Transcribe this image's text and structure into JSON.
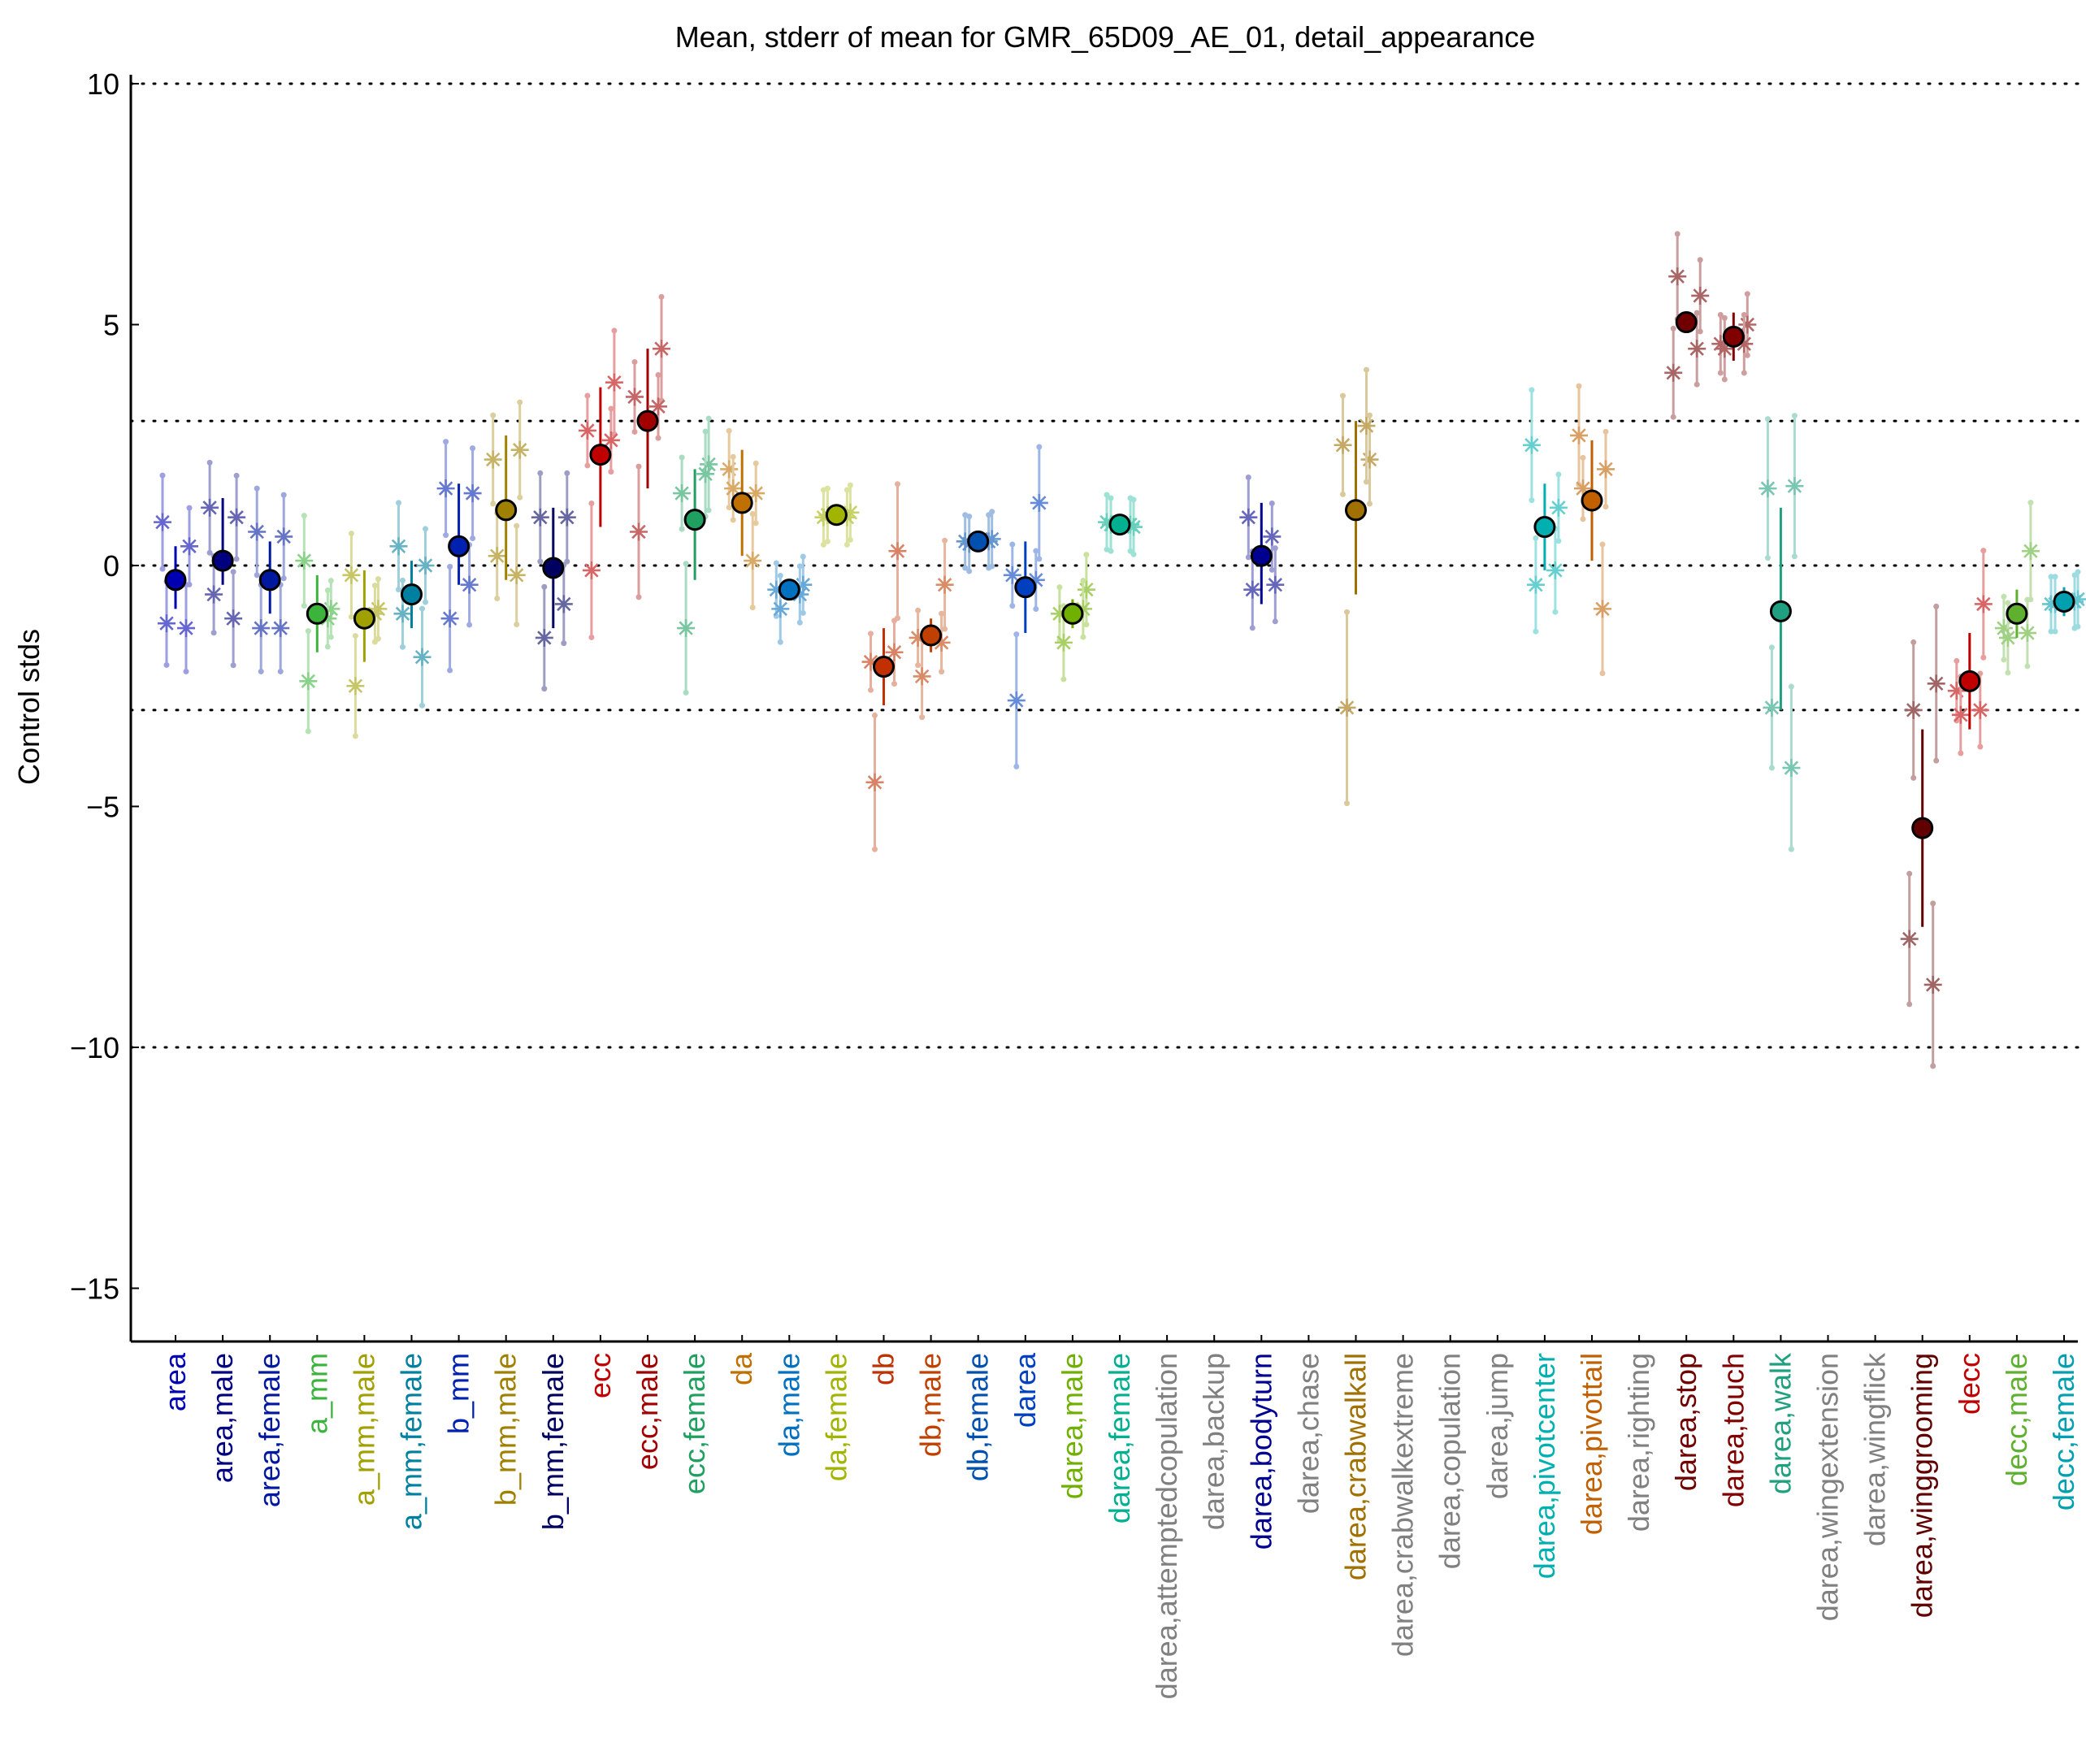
{
  "chart_data": {
    "type": "scatter",
    "title": "Mean, stderr of mean for GMR_65D09_AE_01, detail_appearance",
    "xlabel": "",
    "ylabel": "Control stds",
    "ylim": [
      -16.0,
      10.5
    ],
    "yticks": [
      10,
      5,
      0,
      -5,
      -10,
      -15
    ],
    "yticklabels": [
      "10",
      "5",
      "0",
      "−5",
      "−10",
      "−15"
    ],
    "reference_lines": [
      10,
      3,
      0,
      -3,
      -10
    ],
    "grid": false,
    "categories": [
      {
        "label": "area",
        "color": "#0000b3",
        "mean": -0.3,
        "lo": -0.9,
        "hi": 0.4,
        "stars": [
          0.9,
          0.4,
          -1.2,
          -1.3
        ]
      },
      {
        "label": "area,male",
        "color": "#000080",
        "mean": 0.1,
        "lo": -0.4,
        "hi": 1.4,
        "stars": [
          1.2,
          1.0,
          -0.6,
          -1.1
        ]
      },
      {
        "label": "area,female",
        "color": "#0018a0",
        "mean": -0.3,
        "lo": -1.0,
        "hi": 0.5,
        "stars": [
          0.7,
          0.6,
          -1.3,
          -1.3
        ]
      },
      {
        "label": "a_mm",
        "color": "#3cb43c",
        "mean": -1.0,
        "lo": -1.8,
        "hi": -0.2,
        "stars": [
          0.1,
          -0.9,
          -2.4,
          -1.1
        ]
      },
      {
        "label": "a_mm,male",
        "color": "#a0a000",
        "mean": -1.1,
        "lo": -2.0,
        "hi": -0.1,
        "stars": [
          -0.2,
          -0.9,
          -2.5,
          -1.0
        ]
      },
      {
        "label": "a_mm,female",
        "color": "#0080a0",
        "mean": -0.6,
        "lo": -1.3,
        "hi": 0.1,
        "stars": [
          0.4,
          0.0,
          -1.0,
          -1.9
        ]
      },
      {
        "label": "b_mm",
        "color": "#0020b0",
        "mean": 0.4,
        "lo": -0.4,
        "hi": 1.7,
        "stars": [
          1.6,
          1.5,
          -1.1,
          -0.4
        ]
      },
      {
        "label": "b_mm,male",
        "color": "#a08000",
        "mean": 1.15,
        "lo": -0.3,
        "hi": 2.7,
        "stars": [
          2.2,
          2.4,
          0.2,
          -0.2
        ]
      },
      {
        "label": "b_mm,female",
        "color": "#000060",
        "mean": -0.05,
        "lo": -1.3,
        "hi": 1.2,
        "stars": [
          1.0,
          1.0,
          -1.5,
          -0.8
        ]
      },
      {
        "label": "ecc",
        "color": "#c00000",
        "mean": 2.3,
        "lo": 0.8,
        "hi": 3.7,
        "stars": [
          2.8,
          3.8,
          -0.1,
          2.6
        ]
      },
      {
        "label": "ecc,male",
        "color": "#a00000",
        "mean": 3.0,
        "lo": 1.6,
        "hi": 4.5,
        "stars": [
          3.5,
          4.5,
          0.7,
          3.3
        ]
      },
      {
        "label": "ecc,female",
        "color": "#20a060",
        "mean": 0.95,
        "lo": -0.3,
        "hi": 2.0,
        "stars": [
          1.5,
          2.1,
          -1.3,
          1.9
        ]
      },
      {
        "label": "da",
        "color": "#c07000",
        "mean": 1.3,
        "lo": 0.2,
        "hi": 2.4,
        "stars": [
          2.0,
          1.5,
          1.6,
          0.1
        ]
      },
      {
        "label": "da,male",
        "color": "#0070c0",
        "mean": -0.5,
        "lo": -0.7,
        "hi": -0.3,
        "stars": [
          -0.5,
          -0.4,
          -0.9,
          -0.6
        ]
      },
      {
        "label": "da,female",
        "color": "#a0b400",
        "mean": 1.05,
        "lo": 0.85,
        "hi": 1.25,
        "stars": [
          1.0,
          1.1,
          1.05,
          1.0
        ]
      },
      {
        "label": "db",
        "color": "#c03000",
        "mean": -2.1,
        "lo": -2.9,
        "hi": -1.3,
        "stars": [
          -2.0,
          0.3,
          -4.5,
          -1.8
        ]
      },
      {
        "label": "db,male",
        "color": "#c04000",
        "mean": -1.45,
        "lo": -1.8,
        "hi": -1.1,
        "stars": [
          -1.5,
          -0.4,
          -2.3,
          -1.6
        ]
      },
      {
        "label": "db,female",
        "color": "#0050b0",
        "mean": 0.5,
        "lo": 0.35,
        "hi": 0.65,
        "stars": [
          0.5,
          0.55,
          0.45,
          0.5
        ]
      },
      {
        "label": "darea",
        "color": "#0040c0",
        "mean": -0.45,
        "lo": -1.4,
        "hi": 0.5,
        "stars": [
          -0.2,
          1.3,
          -2.8,
          -0.3
        ]
      },
      {
        "label": "darea,male",
        "color": "#70b000",
        "mean": -1.0,
        "lo": -1.3,
        "hi": -0.7,
        "stars": [
          -1.0,
          -0.5,
          -1.6,
          -0.9
        ]
      },
      {
        "label": "darea,female",
        "color": "#00b090",
        "mean": 0.85,
        "lo": 0.7,
        "hi": 1.0,
        "stars": [
          0.9,
          0.8,
          0.85,
          0.85
        ]
      },
      {
        "label": "darea,attemptedcopulation",
        "color": "#808080",
        "mean": null,
        "lo": null,
        "hi": null,
        "stars": []
      },
      {
        "label": "darea,backup",
        "color": "#808080",
        "mean": null,
        "lo": null,
        "hi": null,
        "stars": []
      },
      {
        "label": "darea,bodyturn",
        "color": "#000090",
        "mean": 0.2,
        "lo": -0.8,
        "hi": 1.3,
        "stars": [
          1.0,
          -0.4,
          -0.5,
          0.6
        ]
      },
      {
        "label": "darea,chase",
        "color": "#808080",
        "mean": null,
        "lo": null,
        "hi": null,
        "stars": []
      },
      {
        "label": "darea,crabwalkall",
        "color": "#a07000",
        "mean": 1.15,
        "lo": -0.6,
        "hi": 3.0,
        "stars": [
          2.5,
          2.2,
          -2.95,
          2.9
        ]
      },
      {
        "label": "darea,crabwalkextreme",
        "color": "#808080",
        "mean": null,
        "lo": null,
        "hi": null,
        "stars": []
      },
      {
        "label": "darea,copulation",
        "color": "#808080",
        "mean": null,
        "lo": null,
        "hi": null,
        "stars": []
      },
      {
        "label": "darea,jump",
        "color": "#808080",
        "mean": null,
        "lo": null,
        "hi": null,
        "stars": []
      },
      {
        "label": "darea,pivotcenter",
        "color": "#00b0b0",
        "mean": 0.8,
        "lo": -0.1,
        "hi": 1.7,
        "stars": [
          2.5,
          1.2,
          -0.4,
          -0.1
        ]
      },
      {
        "label": "darea,pivottail",
        "color": "#c06000",
        "mean": 1.35,
        "lo": 0.1,
        "hi": 2.6,
        "stars": [
          2.7,
          2.0,
          1.6,
          -0.9
        ]
      },
      {
        "label": "darea,righting",
        "color": "#808080",
        "mean": null,
        "lo": null,
        "hi": null,
        "stars": []
      },
      {
        "label": "darea,stop",
        "color": "#700000",
        "mean": 5.05,
        "lo": 4.95,
        "hi": 5.15,
        "stars": [
          4.0,
          5.6,
          6.0,
          4.5
        ]
      },
      {
        "label": "darea,touch",
        "color": "#800000",
        "mean": 4.75,
        "lo": 4.25,
        "hi": 5.25,
        "stars": [
          4.6,
          5.0,
          4.5,
          4.6
        ]
      },
      {
        "label": "darea,walk",
        "color": "#20a080",
        "mean": -0.95,
        "lo": -3.0,
        "hi": 1.2,
        "stars": [
          1.6,
          1.65,
          -2.95,
          -4.2
        ]
      },
      {
        "label": "darea,wingextension",
        "color": "#808080",
        "mean": null,
        "lo": null,
        "hi": null,
        "stars": []
      },
      {
        "label": "darea,wingflick",
        "color": "#808080",
        "mean": null,
        "lo": null,
        "hi": null,
        "stars": []
      },
      {
        "label": "darea,winggrooming",
        "color": "#600000",
        "mean": -5.45,
        "lo": -7.5,
        "hi": -3.4,
        "stars": [
          -7.75,
          -2.45,
          -3.0,
          -8.7
        ]
      },
      {
        "label": "decc",
        "color": "#c00000",
        "mean": -2.4,
        "lo": -3.4,
        "hi": -1.4,
        "stars": [
          -2.6,
          -0.8,
          -3.1,
          -3.0
        ]
      },
      {
        "label": "decc,male",
        "color": "#60b030",
        "mean": -1.0,
        "lo": -1.5,
        "hi": -0.5,
        "stars": [
          -1.3,
          0.3,
          -1.5,
          -1.4
        ]
      },
      {
        "label": "decc,female",
        "color": "#00a0b0",
        "mean": -0.75,
        "lo": -1.05,
        "hi": -0.45,
        "stars": [
          -0.8,
          -0.7,
          -0.8,
          -0.75
        ]
      }
    ]
  }
}
